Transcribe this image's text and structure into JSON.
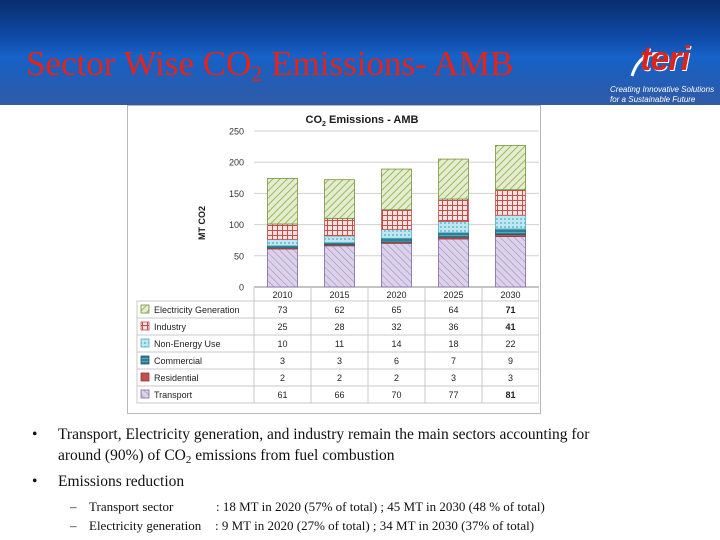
{
  "slide": {
    "title_main": "Sector Wise CO",
    "title_sub": "2",
    "title_tail": " Emissions- AMB",
    "logo": {
      "word": "teri",
      "tagline_1": "Creating Innovative Solutions",
      "tagline_2": "for a Sustainable Future"
    }
  },
  "bullets": [
    {
      "line1": "Transport, Electricity generation, and industry remain the main sectors accounting for",
      "line2_a": "around (90%) of CO",
      "line2_sub": "2",
      "line2_b": " emissions from fuel combustion"
    },
    {
      "line1": "Emissions reduction"
    }
  ],
  "sub_bullets": [
    {
      "label": "Transport sector",
      "text": ": 18 MT in 2020 (57% of total) ;  45 MT in 2030 (48 % of total)"
    },
    {
      "label": "Electricity generation",
      "text": ": 9 MT  in 2020 (27% of total) ;  34 MT in 2030  (37% of total)"
    }
  ],
  "chart_data": {
    "type": "bar",
    "stacked": true,
    "title_a": "CO",
    "title_sub": "2",
    "title_b": " Emissions - AMB",
    "ylabel": "MT CO2",
    "ylim": [
      0,
      250
    ],
    "yticks": [
      0,
      50,
      100,
      150,
      200,
      250
    ],
    "categories": [
      "2010",
      "2015",
      "2020",
      "2025",
      "2030"
    ],
    "series": [
      {
        "name": "Transport",
        "values": [
          61,
          66,
          70,
          77,
          81
        ],
        "color": "#8064a2"
      },
      {
        "name": "Residential",
        "values": [
          2,
          2,
          2,
          3,
          3
        ],
        "color": "#c0504d"
      },
      {
        "name": "Commercial",
        "values": [
          3,
          3,
          6,
          7,
          9
        ],
        "color": "#31859c"
      },
      {
        "name": "Non-Energy Use",
        "values": [
          10,
          11,
          14,
          18,
          22
        ],
        "color": "#4bacc6"
      },
      {
        "name": "Industry",
        "values": [
          25,
          28,
          32,
          36,
          41
        ],
        "color": "#c0504d"
      },
      {
        "name": "Electricity Generation",
        "values": [
          73,
          62,
          65,
          64,
          71
        ],
        "color": "#9bbb59"
      }
    ],
    "table_order": [
      "Electricity Generation",
      "Industry",
      "Non-Energy Use",
      "Commercial",
      "Residential",
      "Transport"
    ],
    "grid": true,
    "legend": "data-table"
  }
}
